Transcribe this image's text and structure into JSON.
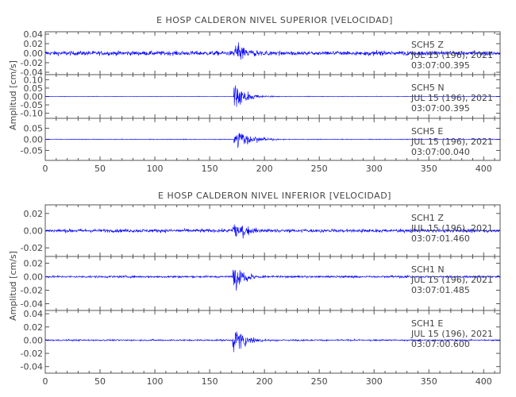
{
  "chart_data": [
    {
      "type": "line",
      "title": "E HOSP CALDERON NIVEL SUPERIOR [VELOCIDAD]",
      "ylabel": "Amplitud [cm/s]",
      "xlabel": "",
      "xlim": [
        0,
        415
      ],
      "xticks": [
        "0",
        "50",
        "100",
        "150",
        "200",
        "250",
        "300",
        "350",
        "400"
      ],
      "xtick_values": [
        0,
        50,
        100,
        150,
        200,
        250,
        300,
        350,
        400
      ],
      "series_color": "#0000ff",
      "series": [
        {
          "station": "SCH5",
          "component": "Z",
          "date": "JUL 15 (196), 2021",
          "time": "03:07:00.395",
          "ylim": [
            -0.045,
            0.045
          ],
          "yticks": [
            "0.04",
            "0.02",
            "0.00",
            "-0.02",
            "-0.04"
          ],
          "ytick_values": [
            0.04,
            0.02,
            0.0,
            -0.02,
            -0.04
          ],
          "noise_amplitude": 0.006,
          "event_onset": 172,
          "event_peak_amplitude": 0.03,
          "event_decay": 12
        },
        {
          "station": "SCH5",
          "component": "N",
          "date": "JUL 15 (196), 2021",
          "time": "03:07:00.395",
          "ylim": [
            -0.13,
            0.13
          ],
          "yticks": [
            "0.10",
            "0.05",
            "0.00",
            "-0.05",
            "-0.10"
          ],
          "ytick_values": [
            0.1,
            0.05,
            0.0,
            -0.05,
            -0.1
          ],
          "noise_amplitude": 0.002,
          "event_onset": 172,
          "event_peak_amplitude": 0.12,
          "event_decay": 10
        },
        {
          "station": "SCH5",
          "component": "E",
          "date": "JUL 15 (196), 2021",
          "time": "03:07:00.040",
          "ylim": [
            -0.095,
            0.095
          ],
          "yticks": [
            "0.05",
            "0.00",
            "-0.05"
          ],
          "ytick_values": [
            0.05,
            0.0,
            -0.05
          ],
          "noise_amplitude": 0.002,
          "event_onset": 172,
          "event_peak_amplitude": 0.085,
          "event_decay": 12
        }
      ]
    },
    {
      "type": "line",
      "title": "E HOSP CALDERON NIVEL INFERIOR [VELOCIDAD]",
      "ylabel": "Amplitud [cm/s]",
      "xlabel": "",
      "xlim": [
        0,
        415
      ],
      "xticks": [
        "0",
        "50",
        "100",
        "150",
        "200",
        "250",
        "300",
        "350",
        "400"
      ],
      "xtick_values": [
        0,
        50,
        100,
        150,
        200,
        250,
        300,
        350,
        400
      ],
      "series_color": "#0000ff",
      "series": [
        {
          "station": "SCH1",
          "component": "Z",
          "date": "JUL 15 (196), 2021",
          "time": "03:07:01.460",
          "ylim": [
            -0.03,
            0.03
          ],
          "yticks": [
            "0.02",
            "0.00",
            "-0.02"
          ],
          "ytick_values": [
            0.02,
            0.0,
            -0.02
          ],
          "noise_amplitude": 0.0025,
          "event_onset": 171,
          "event_peak_amplitude": 0.018,
          "event_decay": 12
        },
        {
          "station": "SCH1",
          "component": "N",
          "date": "JUL 15 (196), 2021",
          "time": "03:07:01.485",
          "ylim": [
            -0.05,
            0.03
          ],
          "yticks": [
            "0.02",
            "0.00",
            "-0.02",
            "-0.04"
          ],
          "ytick_values": [
            0.02,
            0.0,
            -0.02,
            -0.04
          ],
          "noise_amplitude": 0.002,
          "event_onset": 171,
          "event_peak_amplitude": 0.028,
          "event_decay": 11
        },
        {
          "station": "SCH1",
          "component": "E",
          "date": "JUL 15 (196), 2021",
          "time": "03:07:00.600",
          "ylim": [
            -0.05,
            0.045
          ],
          "yticks": [
            "0.04",
            "0.02",
            "0.00",
            "-0.02",
            "-0.04"
          ],
          "ytick_values": [
            0.04,
            0.02,
            0.0,
            -0.02,
            -0.04
          ],
          "noise_amplitude": 0.0015,
          "event_onset": 171,
          "event_peak_amplitude": 0.03,
          "event_decay": 11
        }
      ]
    }
  ]
}
